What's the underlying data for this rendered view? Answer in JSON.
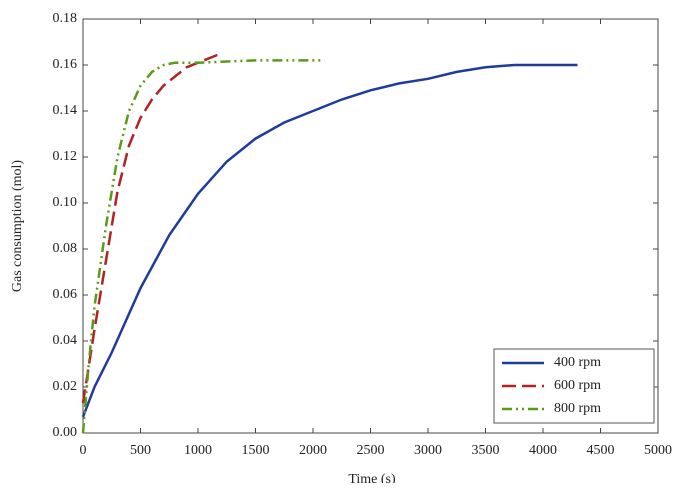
{
  "chart_data": {
    "type": "line",
    "xlabel": "Time (s)",
    "ylabel": "Gas consumption (mol)",
    "xlim": [
      0,
      5000
    ],
    "xticks": [
      0,
      500,
      1000,
      1500,
      2000,
      2500,
      3000,
      3500,
      4000,
      4500,
      5000
    ],
    "ylim": [
      0,
      0.18
    ],
    "yticks": [
      {
        "value": 0,
        "label": "0.00"
      },
      {
        "value": 0.02,
        "label": "0.02"
      },
      {
        "value": 0.04,
        "label": "0.04"
      },
      {
        "value": 0.06,
        "label": "0.06"
      },
      {
        "value": 0.08,
        "label": "0.08"
      },
      {
        "value": 0.1,
        "label": "0.10"
      },
      {
        "value": 0.12,
        "label": "0.12"
      },
      {
        "value": 0.14,
        "label": "0.14"
      },
      {
        "value": 0.16,
        "label": "0.16"
      },
      {
        "value": 0.18,
        "label": "0.18"
      }
    ],
    "legend": "lower right",
    "series": [
      {
        "name": "400 rpm",
        "color": "#1f3c9c",
        "dash": "solid",
        "x": [
          0,
          100,
          250,
          500,
          750,
          1000,
          1250,
          1500,
          1750,
          2000,
          2250,
          2500,
          2750,
          3000,
          3250,
          3500,
          3750,
          4000,
          4300
        ],
        "values": [
          0.007,
          0.02,
          0.035,
          0.063,
          0.086,
          0.104,
          0.118,
          0.128,
          0.135,
          0.14,
          0.145,
          0.149,
          0.152,
          0.154,
          0.157,
          0.159,
          0.16,
          0.16,
          0.16
        ]
      },
      {
        "name": "600 rpm",
        "color": "#b22222",
        "dash": "dashed",
        "x": [
          0,
          100,
          200,
          300,
          400,
          500,
          600,
          700,
          800,
          900,
          1000,
          1100,
          1200
        ],
        "values": [
          0.013,
          0.045,
          0.075,
          0.105,
          0.125,
          0.137,
          0.145,
          0.151,
          0.155,
          0.159,
          0.161,
          0.163,
          0.165
        ]
      },
      {
        "name": "800 rpm",
        "color": "#5a9a1a",
        "dash": "dashdotdot",
        "x": [
          0,
          50,
          100,
          200,
          300,
          400,
          500,
          600,
          700,
          800,
          1000,
          1500,
          2100
        ],
        "values": [
          0.0,
          0.03,
          0.055,
          0.09,
          0.12,
          0.14,
          0.151,
          0.157,
          0.16,
          0.161,
          0.161,
          0.162,
          0.162
        ]
      }
    ]
  }
}
